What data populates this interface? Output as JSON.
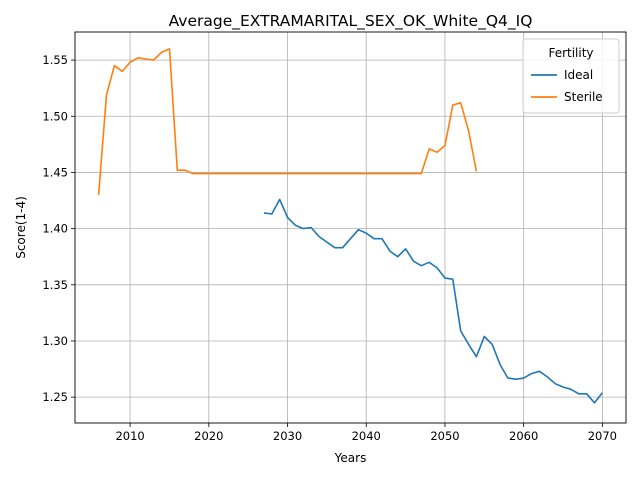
{
  "chart_data": {
    "type": "line",
    "title": "Average_EXTRAMARITAL_SEX_OK_White_Q4_IQ",
    "xlabel": "Years",
    "ylabel": "Score(1-4)",
    "xlim": [
      2003,
      2073
    ],
    "ylim": [
      1.227,
      1.575
    ],
    "xticks": [
      2010,
      2020,
      2030,
      2040,
      2050,
      2060,
      2070
    ],
    "yticks": [
      1.25,
      1.3,
      1.35,
      1.4,
      1.45,
      1.5,
      1.55
    ],
    "grid": true,
    "legend": {
      "title": "Fertility",
      "position": "top-right"
    },
    "series": [
      {
        "name": "Ideal",
        "color": "#1f77b4",
        "x": [
          2027,
          2028,
          2029,
          2030,
          2031,
          2032,
          2033,
          2034,
          2035,
          2036,
          2037,
          2038,
          2039,
          2040,
          2041,
          2042,
          2043,
          2044,
          2045,
          2046,
          2047,
          2048,
          2049,
          2050,
          2051,
          2052,
          2053,
          2054,
          2055,
          2056,
          2057,
          2058,
          2059,
          2060,
          2061,
          2062,
          2063,
          2064,
          2065,
          2066,
          2067,
          2068,
          2069,
          2070
        ],
        "y": [
          1.414,
          1.413,
          1.426,
          1.41,
          1.403,
          1.4,
          1.401,
          1.393,
          1.388,
          1.383,
          1.383,
          1.391,
          1.399,
          1.396,
          1.391,
          1.391,
          1.38,
          1.375,
          1.382,
          1.371,
          1.367,
          1.37,
          1.365,
          1.356,
          1.355,
          1.309,
          1.297,
          1.286,
          1.304,
          1.297,
          1.279,
          1.267,
          1.266,
          1.267,
          1.271,
          1.273,
          1.268,
          1.262,
          1.259,
          1.257,
          1.253,
          1.253,
          1.245,
          1.254
        ]
      },
      {
        "name": "Sterile",
        "color": "#ff7f0e",
        "x": [
          2006,
          2007,
          2008,
          2009,
          2010,
          2011,
          2012,
          2013,
          2014,
          2015,
          2016,
          2017,
          2018,
          2019,
          2020,
          2025,
          2030,
          2035,
          2040,
          2045,
          2047,
          2048,
          2049,
          2050,
          2051,
          2052,
          2053,
          2054
        ],
        "y": [
          1.43,
          1.519,
          1.545,
          1.54,
          1.548,
          1.552,
          1.551,
          1.55,
          1.557,
          1.56,
          1.452,
          1.452,
          1.449,
          1.449,
          1.449,
          1.449,
          1.449,
          1.449,
          1.449,
          1.449,
          1.449,
          1.471,
          1.468,
          1.474,
          1.51,
          1.512,
          1.487,
          1.451
        ]
      }
    ]
  }
}
